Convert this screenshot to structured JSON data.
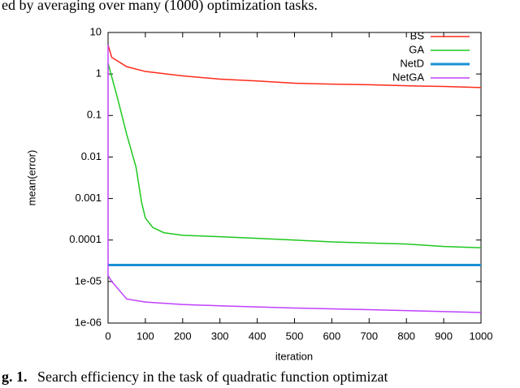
{
  "header_text": "ed by averaging over many (1000) optimization tasks.",
  "caption_label": "g. 1.",
  "caption": "Search efficiency in the task of quadratic function optimizat",
  "chart_data": {
    "type": "line",
    "xlabel": "iteration",
    "ylabel": "mean(error)",
    "xlim": [
      0,
      1000
    ],
    "xticks": [
      0,
      100,
      200,
      300,
      400,
      500,
      600,
      700,
      800,
      900,
      1000
    ],
    "ylim": [
      1e-06,
      10
    ],
    "log_y": true,
    "yticks": [
      10,
      1,
      0.1,
      0.01,
      0.001,
      0.0001,
      {
        "value": 1e-05,
        "label": "1e-05"
      },
      {
        "value": 1e-06,
        "label": "1e-06"
      }
    ],
    "legend": "upper right",
    "series": [
      {
        "name": "BS",
        "color": "#ff2a1a",
        "x": [
          0,
          10,
          50,
          100,
          200,
          300,
          400,
          500,
          600,
          700,
          800,
          900,
          1000
        ],
        "values": [
          5,
          2.5,
          1.5,
          1.15,
          0.9,
          0.75,
          0.68,
          0.6,
          0.57,
          0.55,
          0.52,
          0.5,
          0.47
        ]
      },
      {
        "name": "GA",
        "color": "#1ec81e",
        "x": [
          0,
          25,
          50,
          75,
          90,
          100,
          120,
          150,
          200,
          300,
          400,
          500,
          600,
          700,
          800,
          900,
          1000
        ],
        "values": [
          1.8,
          0.27,
          0.035,
          0.0057,
          0.0008,
          0.00034,
          0.0002,
          0.00015,
          0.00013,
          0.00012,
          0.00011,
          0.0001,
          9e-05,
          8.5e-05,
          8e-05,
          7e-05,
          6.5e-05
        ]
      },
      {
        "name": "NetD",
        "color": "#1a8fd6",
        "x": [
          0,
          1000
        ],
        "values": [
          2.5e-05,
          2.5e-05
        ]
      },
      {
        "name": "NetGA",
        "color": "#c040ff",
        "x": [
          0,
          0,
          10,
          50,
          100,
          200,
          300,
          500,
          700,
          1000
        ],
        "values": [
          5,
          1.4e-05,
          1e-05,
          3.8e-06,
          3.2e-06,
          2.8e-06,
          2.6e-06,
          2.3e-06,
          2.1e-06,
          1.8e-06
        ]
      }
    ]
  }
}
